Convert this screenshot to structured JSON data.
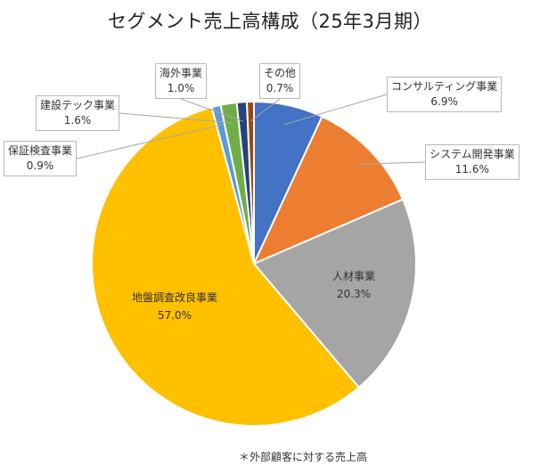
{
  "chart_data": {
    "type": "pie",
    "title": "セグメント売上高構成（25年3月期）",
    "footnote": "＊外部顧客に対する売上高",
    "slices": [
      {
        "label": "コンサルティング事業",
        "value": 6.9,
        "display": "6.9%",
        "color": "#4472C4"
      },
      {
        "label": "システム開発事業",
        "value": 11.6,
        "display": "11.6%",
        "color": "#ED7D31"
      },
      {
        "label": "人材事業",
        "value": 20.3,
        "display": "20.3%",
        "color": "#A5A5A5"
      },
      {
        "label": "地盤調査改良事業",
        "value": 57.0,
        "display": "57.0%",
        "color": "#FFC000"
      },
      {
        "label": "保証検査事業",
        "value": 0.9,
        "display": "0.9%",
        "color": "#5B9BD5"
      },
      {
        "label": "建設テック事業",
        "value": 1.6,
        "display": "1.6%",
        "color": "#70AD47"
      },
      {
        "label": "海外事業",
        "value": 1.0,
        "display": "1.0%",
        "color": "#264478"
      },
      {
        "label": "その他",
        "value": 0.7,
        "display": "0.7%",
        "color": "#9E480E"
      }
    ]
  }
}
